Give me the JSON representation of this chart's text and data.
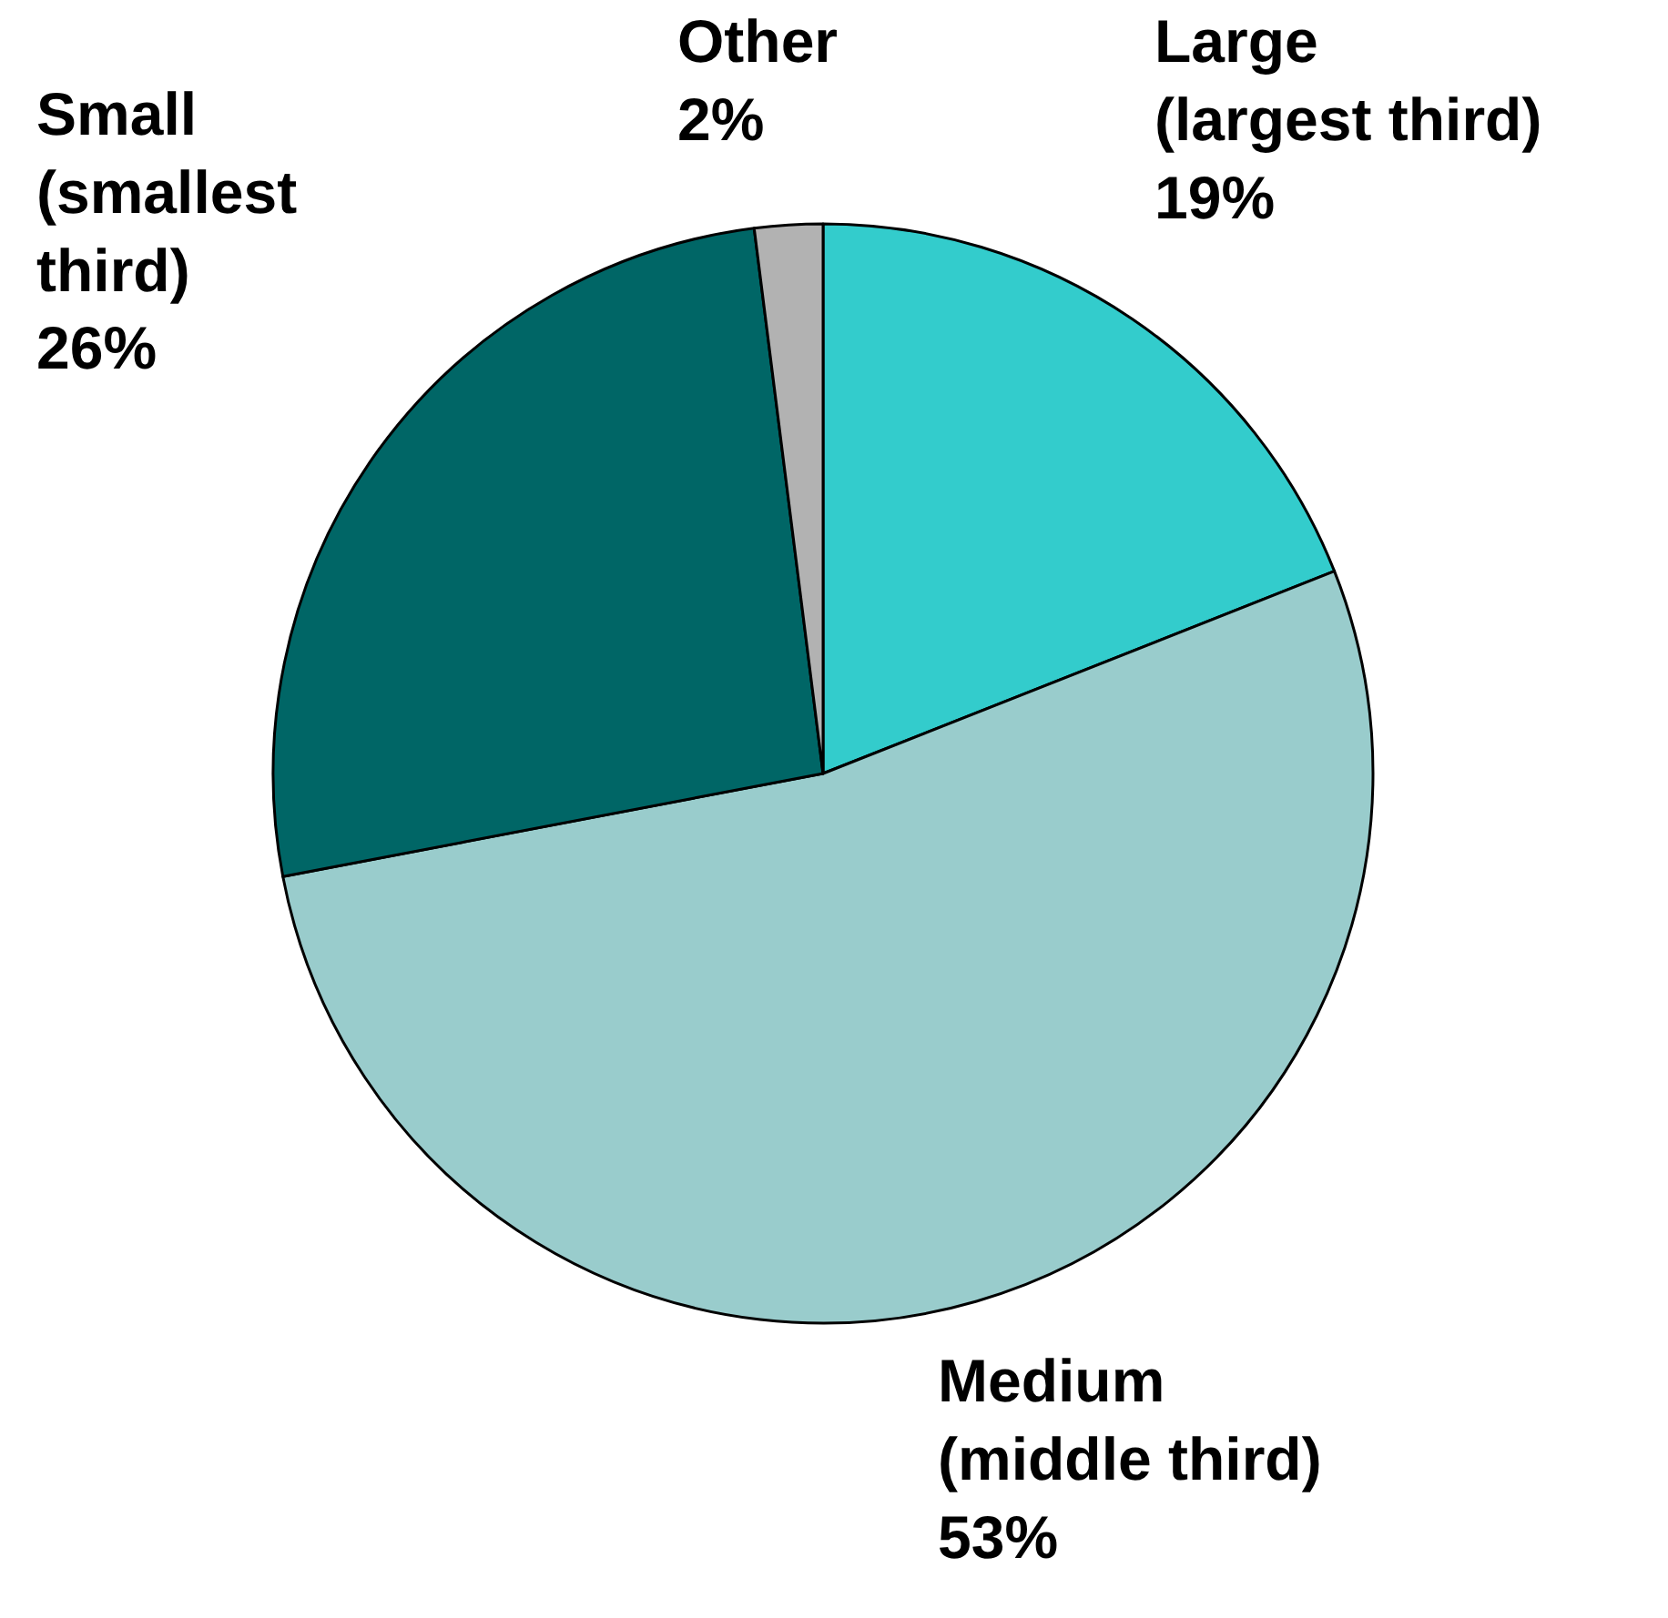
{
  "chart_data": {
    "type": "pie",
    "categories": [
      "Large\n(largest third)",
      "Medium\n(middle third)",
      "Small\n(smallest\nthird)",
      "Other"
    ],
    "values": [
      19,
      53,
      26,
      2
    ],
    "value_labels": [
      "19%",
      "53%",
      "26%",
      "2%"
    ],
    "colors": [
      "#33cccc",
      "#99cccc",
      "#006666",
      "#b2b2b2"
    ],
    "legend": false
  }
}
